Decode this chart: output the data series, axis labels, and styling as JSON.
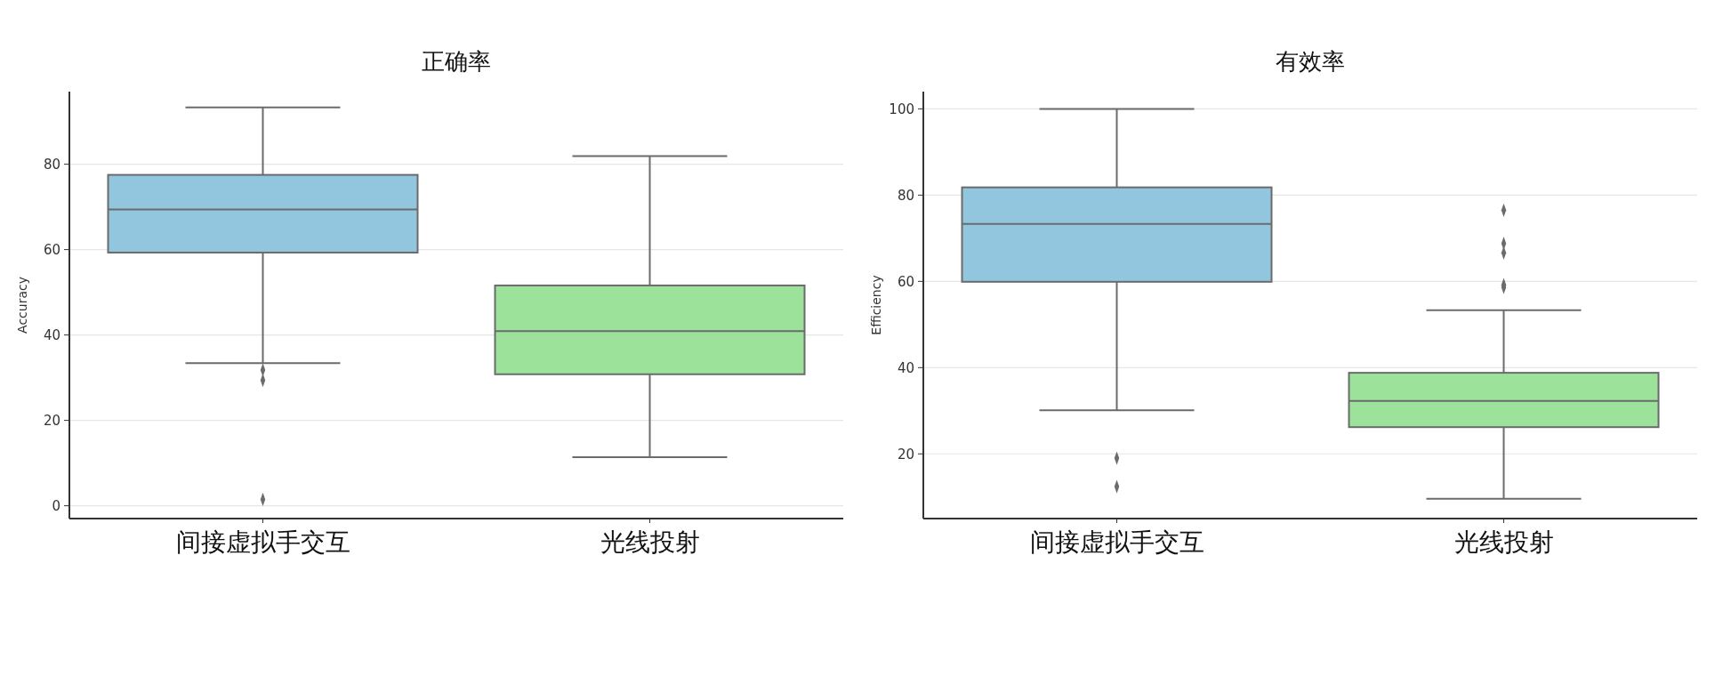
{
  "chart_data": [
    {
      "type": "box",
      "title": "正确率",
      "ylabel": "Accuracy",
      "categories": [
        "间接虚拟手交互",
        "光线投射"
      ],
      "colors": [
        "#92c6de",
        "#9de29a"
      ],
      "boxes": [
        {
          "low": 33.4,
          "q1": 59.3,
          "median": 69.4,
          "q3": 77.5,
          "high": 93.3,
          "outliers": [
            31.8,
            29.4,
            1.5
          ]
        },
        {
          "low": 11.4,
          "q1": 30.8,
          "median": 40.9,
          "q3": 51.6,
          "high": 81.9
        }
      ],
      "ylim": [
        -3,
        97
      ],
      "yticks": [
        0,
        20,
        40,
        60,
        80
      ],
      "grid": "y",
      "marker": "diamond"
    },
    {
      "type": "box",
      "title": "有效率",
      "ylabel": "Efficiency",
      "categories": [
        "间接虚拟手交互",
        "光线投射"
      ],
      "colors": [
        "#92c6de",
        "#9de29a"
      ],
      "boxes": [
        {
          "low": 30.1,
          "q1": 59.9,
          "median": 73.3,
          "q3": 81.8,
          "high": 100,
          "outliers": [
            19.0,
            12.4
          ]
        },
        {
          "low": 9.6,
          "q1": 26.2,
          "median": 32.3,
          "q3": 38.8,
          "high": 53.3,
          "outliers": [
            76.5,
            68.8,
            66.6,
            59.2,
            58.6
          ]
        }
      ],
      "ylim": [
        5,
        104
      ],
      "yticks": [
        20,
        40,
        60,
        80,
        100
      ],
      "grid": "y",
      "marker": "diamond"
    }
  ]
}
